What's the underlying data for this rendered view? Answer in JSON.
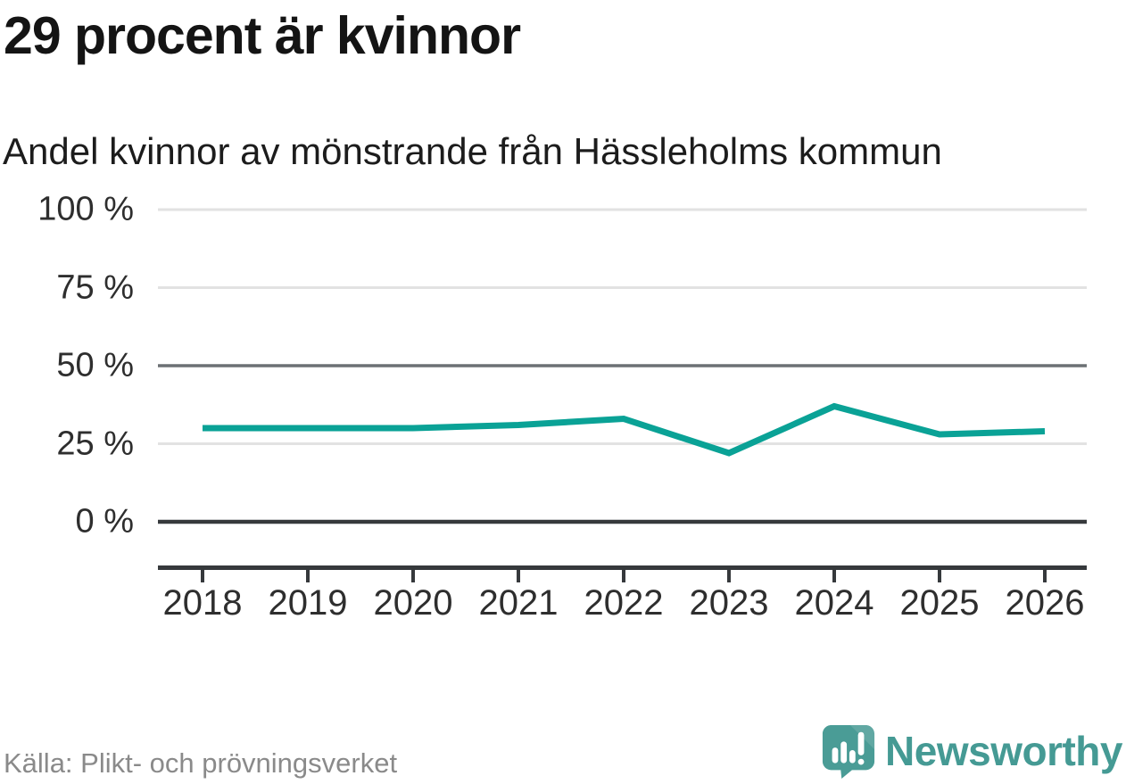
{
  "header": {
    "title": "29 procent är kvinnor",
    "subtitle": "Andel kvinnor av mönstrande från Hässleholms kommun"
  },
  "chart_data": {
    "type": "line",
    "title": "29 procent är kvinnor",
    "subtitle": "Andel kvinnor av mönstrande från Hässleholms kommun",
    "x": [
      "2018",
      "2019",
      "2020",
      "2021",
      "2022",
      "2023",
      "2024",
      "2025",
      "2026"
    ],
    "series": [
      {
        "name": "Andel kvinnor av mönstrande",
        "values": [
          30,
          30,
          30,
          31,
          33,
          22,
          37,
          28,
          29
        ],
        "color": "#0aa296"
      }
    ],
    "unit": "%",
    "xlabel": "",
    "ylabel": "",
    "ylim": [
      0,
      100
    ],
    "y_ticks": [
      {
        "value": 100,
        "label": "100 %"
      },
      {
        "value": 75,
        "label": "75 %"
      },
      {
        "value": 50,
        "label": "50 %"
      },
      {
        "value": 25,
        "label": "25 %"
      },
      {
        "value": 0,
        "label": "0 %"
      }
    ],
    "grid": "horizontal",
    "legend": "none"
  },
  "footer": {
    "source": "Källa: Plikt- och prövningsverket",
    "brand": "Newsworthy",
    "logo_icon": "newsworthy-speech-bubble-bars-icon"
  },
  "colors": {
    "line": "#0aa296",
    "grid_light": "#e2e2e2",
    "grid_mid": "#6c7074",
    "grid_zero": "#36393c",
    "axis": "#36393c",
    "brand_teal": "#459a94",
    "logo_fill": "#4a9c96"
  }
}
